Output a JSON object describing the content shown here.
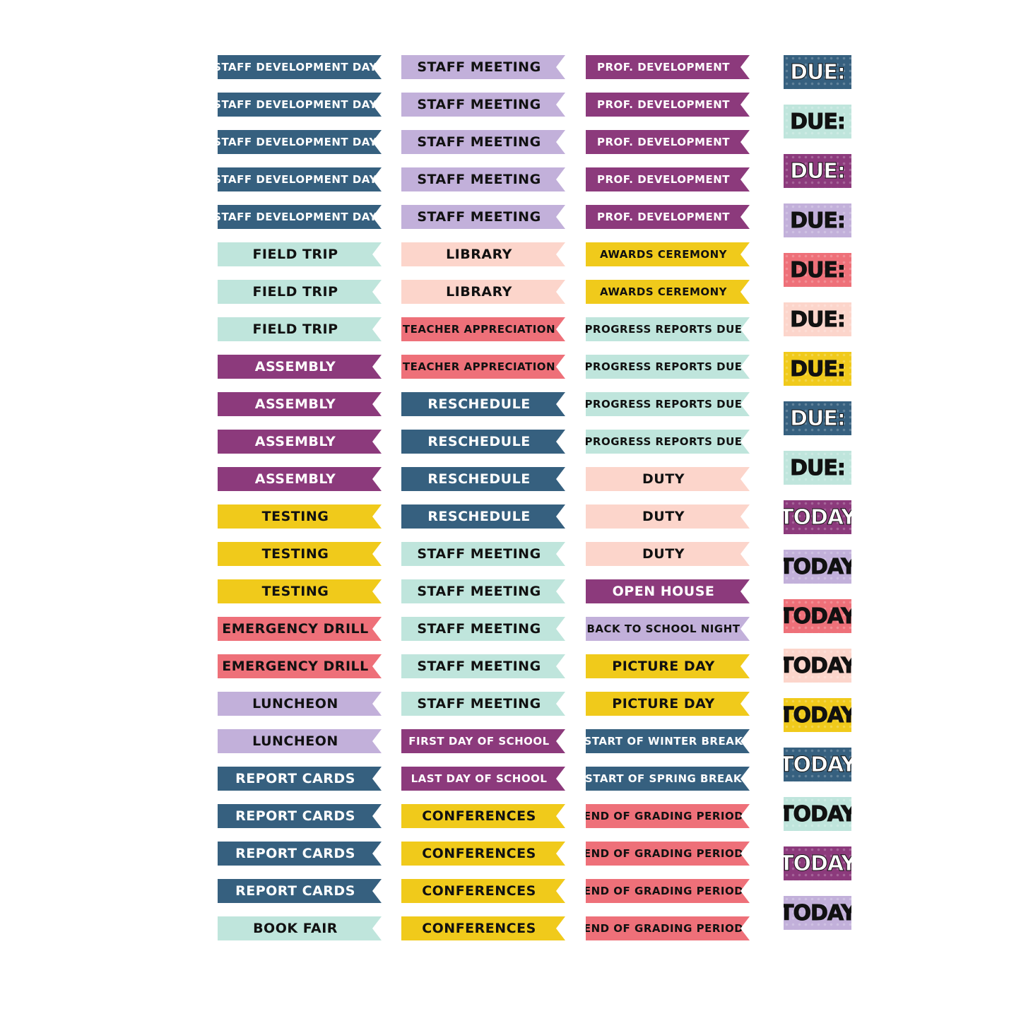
{
  "palette": {
    "navy": "#36607f",
    "lavender": "#c2b0da",
    "plum": "#8c3a7c",
    "mint": "#bfe5dc",
    "peach": "#fcd5cb",
    "yellow": "#f0ca1b",
    "coral": "#ee7079"
  },
  "column1": [
    {
      "label": "STAFF DEVELOPMENT DAY",
      "color": "#36607f",
      "text_color": "#ffffff",
      "size": "s"
    },
    {
      "label": "STAFF DEVELOPMENT DAY",
      "color": "#36607f",
      "text_color": "#ffffff",
      "size": "s"
    },
    {
      "label": "STAFF DEVELOPMENT DAY",
      "color": "#36607f",
      "text_color": "#ffffff",
      "size": "s"
    },
    {
      "label": "STAFF DEVELOPMENT DAY",
      "color": "#36607f",
      "text_color": "#ffffff",
      "size": "s"
    },
    {
      "label": "STAFF DEVELOPMENT DAY",
      "color": "#36607f",
      "text_color": "#ffffff",
      "size": "s"
    },
    {
      "label": "FIELD TRIP",
      "color": "#bfe5dc",
      "text_color": "#111111",
      "size": "m"
    },
    {
      "label": "FIELD TRIP",
      "color": "#bfe5dc",
      "text_color": "#111111",
      "size": "m"
    },
    {
      "label": "FIELD TRIP",
      "color": "#bfe5dc",
      "text_color": "#111111",
      "size": "m"
    },
    {
      "label": "ASSEMBLY",
      "color": "#8c3a7c",
      "text_color": "#ffffff",
      "size": "m"
    },
    {
      "label": "ASSEMBLY",
      "color": "#8c3a7c",
      "text_color": "#ffffff",
      "size": "m"
    },
    {
      "label": "ASSEMBLY",
      "color": "#8c3a7c",
      "text_color": "#ffffff",
      "size": "m"
    },
    {
      "label": "ASSEMBLY",
      "color": "#8c3a7c",
      "text_color": "#ffffff",
      "size": "m"
    },
    {
      "label": "TESTING",
      "color": "#f0ca1b",
      "text_color": "#111111",
      "size": "m"
    },
    {
      "label": "TESTING",
      "color": "#f0ca1b",
      "text_color": "#111111",
      "size": "m"
    },
    {
      "label": "TESTING",
      "color": "#f0ca1b",
      "text_color": "#111111",
      "size": "m"
    },
    {
      "label": "EMERGENCY DRILL",
      "color": "#ee7079",
      "text_color": "#111111",
      "size": "m"
    },
    {
      "label": "EMERGENCY DRILL",
      "color": "#ee7079",
      "text_color": "#111111",
      "size": "m"
    },
    {
      "label": "LUNCHEON",
      "color": "#c2b0da",
      "text_color": "#111111",
      "size": "m"
    },
    {
      "label": "LUNCHEON",
      "color": "#c2b0da",
      "text_color": "#111111",
      "size": "m"
    },
    {
      "label": "REPORT CARDS",
      "color": "#36607f",
      "text_color": "#ffffff",
      "size": "m"
    },
    {
      "label": "REPORT CARDS",
      "color": "#36607f",
      "text_color": "#ffffff",
      "size": "m"
    },
    {
      "label": "REPORT CARDS",
      "color": "#36607f",
      "text_color": "#ffffff",
      "size": "m"
    },
    {
      "label": "REPORT CARDS",
      "color": "#36607f",
      "text_color": "#ffffff",
      "size": "m"
    },
    {
      "label": "BOOK FAIR",
      "color": "#bfe5dc",
      "text_color": "#111111",
      "size": "m"
    }
  ],
  "column2": [
    {
      "label": "STAFF MEETING",
      "color": "#c2b0da",
      "text_color": "#111111",
      "size": "m"
    },
    {
      "label": "STAFF MEETING",
      "color": "#c2b0da",
      "text_color": "#111111",
      "size": "m"
    },
    {
      "label": "STAFF MEETING",
      "color": "#c2b0da",
      "text_color": "#111111",
      "size": "m"
    },
    {
      "label": "STAFF MEETING",
      "color": "#c2b0da",
      "text_color": "#111111",
      "size": "m"
    },
    {
      "label": "STAFF MEETING",
      "color": "#c2b0da",
      "text_color": "#111111",
      "size": "m"
    },
    {
      "label": "LIBRARY",
      "color": "#fcd5cb",
      "text_color": "#111111",
      "size": "m"
    },
    {
      "label": "LIBRARY",
      "color": "#fcd5cb",
      "text_color": "#111111",
      "size": "m"
    },
    {
      "label": "TEACHER APPRECIATION",
      "color": "#ee7079",
      "text_color": "#111111",
      "size": "s"
    },
    {
      "label": "TEACHER APPRECIATION",
      "color": "#ee7079",
      "text_color": "#111111",
      "size": "s"
    },
    {
      "label": "RESCHEDULE",
      "color": "#36607f",
      "text_color": "#ffffff",
      "size": "m"
    },
    {
      "label": "RESCHEDULE",
      "color": "#36607f",
      "text_color": "#ffffff",
      "size": "m"
    },
    {
      "label": "RESCHEDULE",
      "color": "#36607f",
      "text_color": "#ffffff",
      "size": "m"
    },
    {
      "label": "RESCHEDULE",
      "color": "#36607f",
      "text_color": "#ffffff",
      "size": "m"
    },
    {
      "label": "STAFF MEETING",
      "color": "#bfe5dc",
      "text_color": "#111111",
      "size": "m"
    },
    {
      "label": "STAFF MEETING",
      "color": "#bfe5dc",
      "text_color": "#111111",
      "size": "m"
    },
    {
      "label": "STAFF MEETING",
      "color": "#bfe5dc",
      "text_color": "#111111",
      "size": "m"
    },
    {
      "label": "STAFF MEETING",
      "color": "#bfe5dc",
      "text_color": "#111111",
      "size": "m"
    },
    {
      "label": "STAFF MEETING",
      "color": "#bfe5dc",
      "text_color": "#111111",
      "size": "m"
    },
    {
      "label": "FIRST DAY OF SCHOOL",
      "color": "#8c3a7c",
      "text_color": "#ffffff",
      "size": "s"
    },
    {
      "label": "LAST DAY OF SCHOOL",
      "color": "#8c3a7c",
      "text_color": "#ffffff",
      "size": "s"
    },
    {
      "label": "CONFERENCES",
      "color": "#f0ca1b",
      "text_color": "#111111",
      "size": "m"
    },
    {
      "label": "CONFERENCES",
      "color": "#f0ca1b",
      "text_color": "#111111",
      "size": "m"
    },
    {
      "label": "CONFERENCES",
      "color": "#f0ca1b",
      "text_color": "#111111",
      "size": "m"
    },
    {
      "label": "CONFERENCES",
      "color": "#f0ca1b",
      "text_color": "#111111",
      "size": "m"
    }
  ],
  "column3": [
    {
      "label": "PROF. DEVELOPMENT",
      "color": "#8c3a7c",
      "text_color": "#ffffff",
      "size": "s"
    },
    {
      "label": "PROF. DEVELOPMENT",
      "color": "#8c3a7c",
      "text_color": "#ffffff",
      "size": "s"
    },
    {
      "label": "PROF. DEVELOPMENT",
      "color": "#8c3a7c",
      "text_color": "#ffffff",
      "size": "s"
    },
    {
      "label": "PROF. DEVELOPMENT",
      "color": "#8c3a7c",
      "text_color": "#ffffff",
      "size": "s"
    },
    {
      "label": "PROF. DEVELOPMENT",
      "color": "#8c3a7c",
      "text_color": "#ffffff",
      "size": "s"
    },
    {
      "label": "AWARDS CEREMONY",
      "color": "#f0ca1b",
      "text_color": "#111111",
      "size": "s"
    },
    {
      "label": "AWARDS CEREMONY",
      "color": "#f0ca1b",
      "text_color": "#111111",
      "size": "s"
    },
    {
      "label": "PROGRESS REPORTS DUE",
      "color": "#bfe5dc",
      "text_color": "#111111",
      "size": "s"
    },
    {
      "label": "PROGRESS REPORTS DUE",
      "color": "#bfe5dc",
      "text_color": "#111111",
      "size": "s"
    },
    {
      "label": "PROGRESS REPORTS DUE",
      "color": "#bfe5dc",
      "text_color": "#111111",
      "size": "s"
    },
    {
      "label": "PROGRESS REPORTS DUE",
      "color": "#bfe5dc",
      "text_color": "#111111",
      "size": "s"
    },
    {
      "label": "DUTY",
      "color": "#fcd5cb",
      "text_color": "#111111",
      "size": "m"
    },
    {
      "label": "DUTY",
      "color": "#fcd5cb",
      "text_color": "#111111",
      "size": "m"
    },
    {
      "label": "DUTY",
      "color": "#fcd5cb",
      "text_color": "#111111",
      "size": "m"
    },
    {
      "label": "OPEN HOUSE",
      "color": "#8c3a7c",
      "text_color": "#ffffff",
      "size": "m"
    },
    {
      "label": "BACK TO SCHOOL NIGHT",
      "color": "#c2b0da",
      "text_color": "#111111",
      "size": "s"
    },
    {
      "label": "PICTURE DAY",
      "color": "#f0ca1b",
      "text_color": "#111111",
      "size": "m"
    },
    {
      "label": "PICTURE DAY",
      "color": "#f0ca1b",
      "text_color": "#111111",
      "size": "m"
    },
    {
      "label": "START OF WINTER BREAK",
      "color": "#36607f",
      "text_color": "#ffffff",
      "size": "s"
    },
    {
      "label": "START OF SPRING BREAK",
      "color": "#36607f",
      "text_color": "#ffffff",
      "size": "s"
    },
    {
      "label": "END OF GRADING PERIOD",
      "color": "#ee7079",
      "text_color": "#111111",
      "size": "s"
    },
    {
      "label": "END OF GRADING PERIOD",
      "color": "#ee7079",
      "text_color": "#111111",
      "size": "s"
    },
    {
      "label": "END OF GRADING PERIOD",
      "color": "#ee7079",
      "text_color": "#111111",
      "size": "s"
    },
    {
      "label": "END OF GRADING PERIOD",
      "color": "#ee7079",
      "text_color": "#111111",
      "size": "s"
    }
  ],
  "column4": [
    {
      "label": "DUE:",
      "color": "#36607f",
      "text_color": "#ffffff"
    },
    {
      "label": "DUE:",
      "color": "#bfe5dc",
      "text_color": "#111111"
    },
    {
      "label": "DUE:",
      "color": "#8c3a7c",
      "text_color": "#ffffff"
    },
    {
      "label": "DUE:",
      "color": "#c2b0da",
      "text_color": "#111111"
    },
    {
      "label": "DUE:",
      "color": "#ee7079",
      "text_color": "#111111"
    },
    {
      "label": "DUE:",
      "color": "#fcd5cb",
      "text_color": "#111111"
    },
    {
      "label": "DUE:",
      "color": "#f0ca1b",
      "text_color": "#111111"
    },
    {
      "label": "DUE:",
      "color": "#36607f",
      "text_color": "#ffffff"
    },
    {
      "label": "DUE:",
      "color": "#bfe5dc",
      "text_color": "#111111"
    },
    {
      "label": "TODAY",
      "color": "#8c3a7c",
      "text_color": "#ffffff"
    },
    {
      "label": "TODAY",
      "color": "#c2b0da",
      "text_color": "#111111"
    },
    {
      "label": "TODAY",
      "color": "#ee7079",
      "text_color": "#111111"
    },
    {
      "label": "TODAY",
      "color": "#fcd5cb",
      "text_color": "#111111"
    },
    {
      "label": "TODAY",
      "color": "#f0ca1b",
      "text_color": "#111111"
    },
    {
      "label": "TODAY",
      "color": "#36607f",
      "text_color": "#ffffff"
    },
    {
      "label": "TODAY",
      "color": "#bfe5dc",
      "text_color": "#111111"
    },
    {
      "label": "TODAY",
      "color": "#8c3a7c",
      "text_color": "#ffffff"
    },
    {
      "label": "TODAY",
      "color": "#c2b0da",
      "text_color": "#111111"
    }
  ]
}
